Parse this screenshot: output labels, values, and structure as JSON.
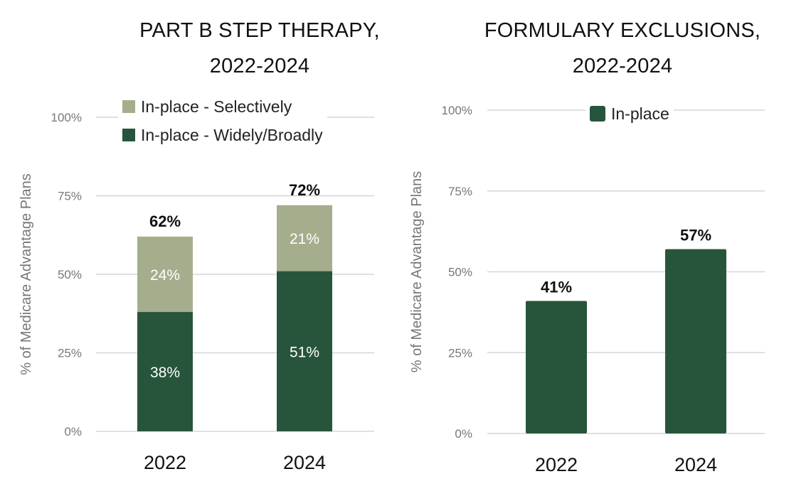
{
  "colors": {
    "selectively": "#a4ae8d",
    "widely": "#27553b",
    "in_place": "#27553b",
    "grid": "#d5d5d5",
    "tick": "#777777"
  },
  "chart_data": [
    {
      "type": "bar",
      "stacked": true,
      "title_line1": "PART B STEP THERAPY,",
      "title_line2": "2022-2024",
      "ylabel": "% of Medicare Advantage Plans",
      "categories": [
        "2022",
        "2024"
      ],
      "ylim": [
        0,
        100
      ],
      "yticks": [
        "0%",
        "25%",
        "50%",
        "75%",
        "100%"
      ],
      "series": [
        {
          "name": "In-place - Widely/Broadly",
          "values": [
            38,
            51
          ],
          "labels": [
            "38%",
            "51%"
          ]
        },
        {
          "name": "In-place - Selectively",
          "values": [
            24,
            21
          ],
          "labels": [
            "24%",
            "21%"
          ]
        }
      ],
      "totals": [
        "62%",
        "72%"
      ],
      "legend": "top"
    },
    {
      "type": "bar",
      "title_line1": "FORMULARY EXCLUSIONS,",
      "title_line2": "2022-2024",
      "ylabel": "% of Medicare Advantage Plans",
      "categories": [
        "2022",
        "2024"
      ],
      "ylim": [
        0,
        100
      ],
      "yticks": [
        "0%",
        "25%",
        "50%",
        "75%",
        "100%"
      ],
      "series": [
        {
          "name": "In-place",
          "values": [
            41,
            57
          ],
          "labels": [
            "41%",
            "57%"
          ]
        }
      ],
      "legend": "top"
    }
  ]
}
